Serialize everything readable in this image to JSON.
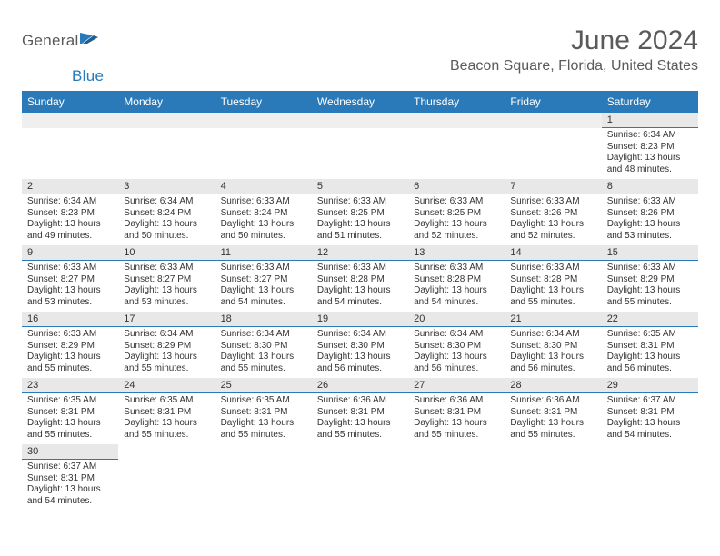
{
  "logo": {
    "part1": "General",
    "part2": "Blue"
  },
  "title": "June 2024",
  "location": "Beacon Square, Florida, United States",
  "colors": {
    "header_bg": "#2a7ab9",
    "header_text": "#ffffff",
    "date_bg": "#e8e8e8",
    "blank_bg": "#efefef",
    "page_bg": "#ffffff",
    "logo_gray": "#58595b",
    "logo_blue": "#2a7ab9",
    "title_color": "#5a5a5a"
  },
  "daynames": [
    "Sunday",
    "Monday",
    "Tuesday",
    "Wednesday",
    "Thursday",
    "Friday",
    "Saturday"
  ],
  "weeks": [
    {
      "dates": [
        "",
        "",
        "",
        "",
        "",
        "",
        "1"
      ],
      "events": [
        "",
        "",
        "",
        "",
        "",
        "",
        "Sunrise: 6:34 AM\nSunset: 8:23 PM\nDaylight: 13 hours and 48 minutes."
      ]
    },
    {
      "dates": [
        "2",
        "3",
        "4",
        "5",
        "6",
        "7",
        "8"
      ],
      "events": [
        "Sunrise: 6:34 AM\nSunset: 8:23 PM\nDaylight: 13 hours and 49 minutes.",
        "Sunrise: 6:34 AM\nSunset: 8:24 PM\nDaylight: 13 hours and 50 minutes.",
        "Sunrise: 6:33 AM\nSunset: 8:24 PM\nDaylight: 13 hours and 50 minutes.",
        "Sunrise: 6:33 AM\nSunset: 8:25 PM\nDaylight: 13 hours and 51 minutes.",
        "Sunrise: 6:33 AM\nSunset: 8:25 PM\nDaylight: 13 hours and 52 minutes.",
        "Sunrise: 6:33 AM\nSunset: 8:26 PM\nDaylight: 13 hours and 52 minutes.",
        "Sunrise: 6:33 AM\nSunset: 8:26 PM\nDaylight: 13 hours and 53 minutes."
      ]
    },
    {
      "dates": [
        "9",
        "10",
        "11",
        "12",
        "13",
        "14",
        "15"
      ],
      "events": [
        "Sunrise: 6:33 AM\nSunset: 8:27 PM\nDaylight: 13 hours and 53 minutes.",
        "Sunrise: 6:33 AM\nSunset: 8:27 PM\nDaylight: 13 hours and 53 minutes.",
        "Sunrise: 6:33 AM\nSunset: 8:27 PM\nDaylight: 13 hours and 54 minutes.",
        "Sunrise: 6:33 AM\nSunset: 8:28 PM\nDaylight: 13 hours and 54 minutes.",
        "Sunrise: 6:33 AM\nSunset: 8:28 PM\nDaylight: 13 hours and 54 minutes.",
        "Sunrise: 6:33 AM\nSunset: 8:28 PM\nDaylight: 13 hours and 55 minutes.",
        "Sunrise: 6:33 AM\nSunset: 8:29 PM\nDaylight: 13 hours and 55 minutes."
      ]
    },
    {
      "dates": [
        "16",
        "17",
        "18",
        "19",
        "20",
        "21",
        "22"
      ],
      "events": [
        "Sunrise: 6:33 AM\nSunset: 8:29 PM\nDaylight: 13 hours and 55 minutes.",
        "Sunrise: 6:34 AM\nSunset: 8:29 PM\nDaylight: 13 hours and 55 minutes.",
        "Sunrise: 6:34 AM\nSunset: 8:30 PM\nDaylight: 13 hours and 55 minutes.",
        "Sunrise: 6:34 AM\nSunset: 8:30 PM\nDaylight: 13 hours and 56 minutes.",
        "Sunrise: 6:34 AM\nSunset: 8:30 PM\nDaylight: 13 hours and 56 minutes.",
        "Sunrise: 6:34 AM\nSunset: 8:30 PM\nDaylight: 13 hours and 56 minutes.",
        "Sunrise: 6:35 AM\nSunset: 8:31 PM\nDaylight: 13 hours and 56 minutes."
      ]
    },
    {
      "dates": [
        "23",
        "24",
        "25",
        "26",
        "27",
        "28",
        "29"
      ],
      "events": [
        "Sunrise: 6:35 AM\nSunset: 8:31 PM\nDaylight: 13 hours and 55 minutes.",
        "Sunrise: 6:35 AM\nSunset: 8:31 PM\nDaylight: 13 hours and 55 minutes.",
        "Sunrise: 6:35 AM\nSunset: 8:31 PM\nDaylight: 13 hours and 55 minutes.",
        "Sunrise: 6:36 AM\nSunset: 8:31 PM\nDaylight: 13 hours and 55 minutes.",
        "Sunrise: 6:36 AM\nSunset: 8:31 PM\nDaylight: 13 hours and 55 minutes.",
        "Sunrise: 6:36 AM\nSunset: 8:31 PM\nDaylight: 13 hours and 55 minutes.",
        "Sunrise: 6:37 AM\nSunset: 8:31 PM\nDaylight: 13 hours and 54 minutes."
      ]
    },
    {
      "dates": [
        "30",
        "",
        "",
        "",
        "",
        "",
        ""
      ],
      "events": [
        "Sunrise: 6:37 AM\nSunset: 8:31 PM\nDaylight: 13 hours and 54 minutes.",
        "",
        "",
        "",
        "",
        "",
        ""
      ]
    }
  ]
}
